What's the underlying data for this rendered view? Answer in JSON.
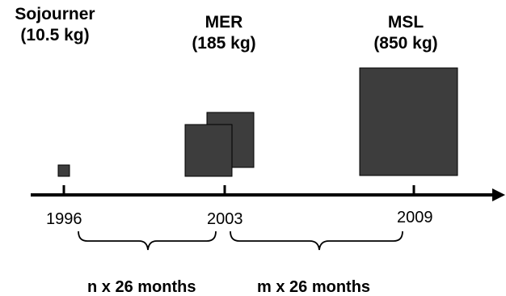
{
  "missions": [
    {
      "name": "Sojourner",
      "mass": "(10.5 kg)"
    },
    {
      "name": "MER",
      "mass": "(185 kg)"
    },
    {
      "name": "MSL",
      "mass": "(850 kg)"
    }
  ],
  "years": [
    "1996",
    "2003",
    "2009"
  ],
  "intervals": [
    "n x 26 months",
    "m x 26 months"
  ],
  "colors": {
    "box_fill": "#3d3d3d",
    "box_stroke": "#000000",
    "axis": "#000000",
    "text": "#000000"
  }
}
